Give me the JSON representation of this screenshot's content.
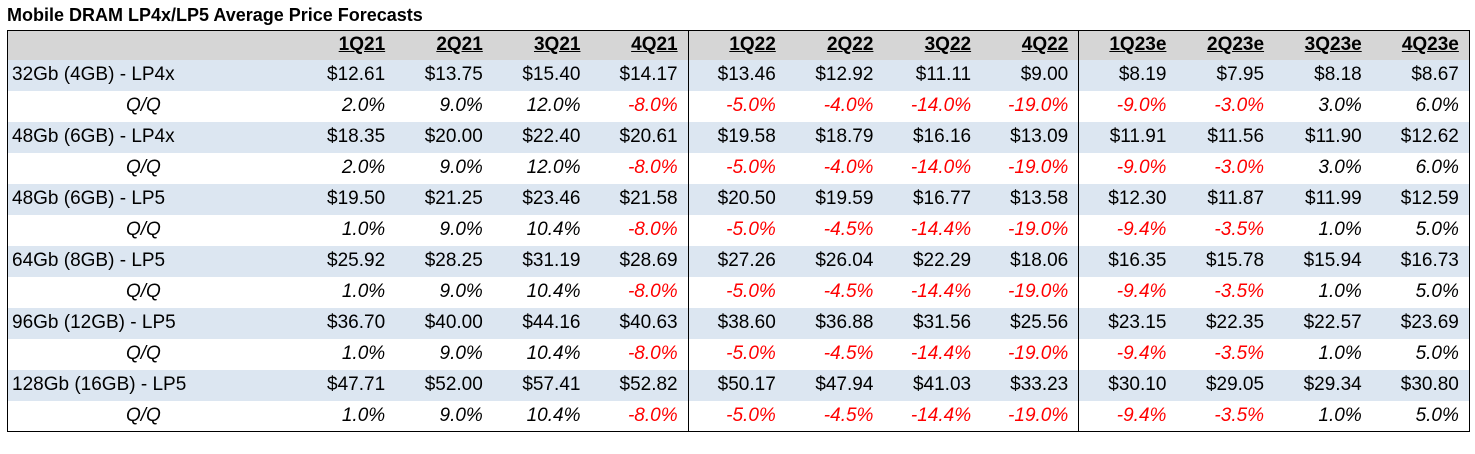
{
  "title": "Mobile DRAM LP4x/LP5 Average Price Forecasts",
  "colors": {
    "header_bg": "#d6d6d6",
    "price_row_bg": "#dce6f1",
    "negative": "#ff0000"
  },
  "chart_data": {
    "type": "table",
    "title": "Mobile DRAM LP4x/LP5 Average Price Forecasts",
    "columns": [
      "1Q21",
      "2Q21",
      "3Q21",
      "4Q21",
      "1Q22",
      "2Q22",
      "3Q22",
      "4Q22",
      "1Q23e",
      "2Q23e",
      "3Q23e",
      "4Q23e"
    ],
    "rows": [
      {
        "label": "32Gb (4GB) - LP4x",
        "prices": [
          "$12.61",
          "$13.75",
          "$15.40",
          "$14.17",
          "$13.46",
          "$12.92",
          "$11.11",
          "$9.00",
          "$8.19",
          "$7.95",
          "$8.18",
          "$8.67"
        ],
        "qq_label": "Q/Q",
        "qq": [
          "2.0%",
          "9.0%",
          "12.0%",
          "-8.0%",
          "-5.0%",
          "-4.0%",
          "-14.0%",
          "-19.0%",
          "-9.0%",
          "-3.0%",
          "3.0%",
          "6.0%"
        ]
      },
      {
        "label": "48Gb (6GB) - LP4x",
        "prices": [
          "$18.35",
          "$20.00",
          "$22.40",
          "$20.61",
          "$19.58",
          "$18.79",
          "$16.16",
          "$13.09",
          "$11.91",
          "$11.56",
          "$11.90",
          "$12.62"
        ],
        "qq_label": "Q/Q",
        "qq": [
          "2.0%",
          "9.0%",
          "12.0%",
          "-8.0%",
          "-5.0%",
          "-4.0%",
          "-14.0%",
          "-19.0%",
          "-9.0%",
          "-3.0%",
          "3.0%",
          "6.0%"
        ]
      },
      {
        "label": "48Gb (6GB) - LP5",
        "prices": [
          "$19.50",
          "$21.25",
          "$23.46",
          "$21.58",
          "$20.50",
          "$19.59",
          "$16.77",
          "$13.58",
          "$12.30",
          "$11.87",
          "$11.99",
          "$12.59"
        ],
        "qq_label": "Q/Q",
        "qq": [
          "1.0%",
          "9.0%",
          "10.4%",
          "-8.0%",
          "-5.0%",
          "-4.5%",
          "-14.4%",
          "-19.0%",
          "-9.4%",
          "-3.5%",
          "1.0%",
          "5.0%"
        ]
      },
      {
        "label": "64Gb (8GB) - LP5",
        "prices": [
          "$25.92",
          "$28.25",
          "$31.19",
          "$28.69",
          "$27.26",
          "$26.04",
          "$22.29",
          "$18.06",
          "$16.35",
          "$15.78",
          "$15.94",
          "$16.73"
        ],
        "qq_label": "Q/Q",
        "qq": [
          "1.0%",
          "9.0%",
          "10.4%",
          "-8.0%",
          "-5.0%",
          "-4.5%",
          "-14.4%",
          "-19.0%",
          "-9.4%",
          "-3.5%",
          "1.0%",
          "5.0%"
        ]
      },
      {
        "label": "96Gb (12GB) - LP5",
        "prices": [
          "$36.70",
          "$40.00",
          "$44.16",
          "$40.63",
          "$38.60",
          "$36.88",
          "$31.56",
          "$25.56",
          "$23.15",
          "$22.35",
          "$22.57",
          "$23.69"
        ],
        "qq_label": "Q/Q",
        "qq": [
          "1.0%",
          "9.0%",
          "10.4%",
          "-8.0%",
          "-5.0%",
          "-4.5%",
          "-14.4%",
          "-19.0%",
          "-9.4%",
          "-3.5%",
          "1.0%",
          "5.0%"
        ]
      },
      {
        "label": "128Gb (16GB) - LP5",
        "prices": [
          "$47.71",
          "$52.00",
          "$57.41",
          "$52.82",
          "$50.17",
          "$47.94",
          "$41.03",
          "$33.23",
          "$30.10",
          "$29.05",
          "$29.34",
          "$30.80"
        ],
        "qq_label": "Q/Q",
        "qq": [
          "1.0%",
          "9.0%",
          "10.4%",
          "-8.0%",
          "-5.0%",
          "-4.5%",
          "-14.4%",
          "-19.0%",
          "-9.4%",
          "-3.5%",
          "1.0%",
          "5.0%"
        ]
      }
    ]
  }
}
